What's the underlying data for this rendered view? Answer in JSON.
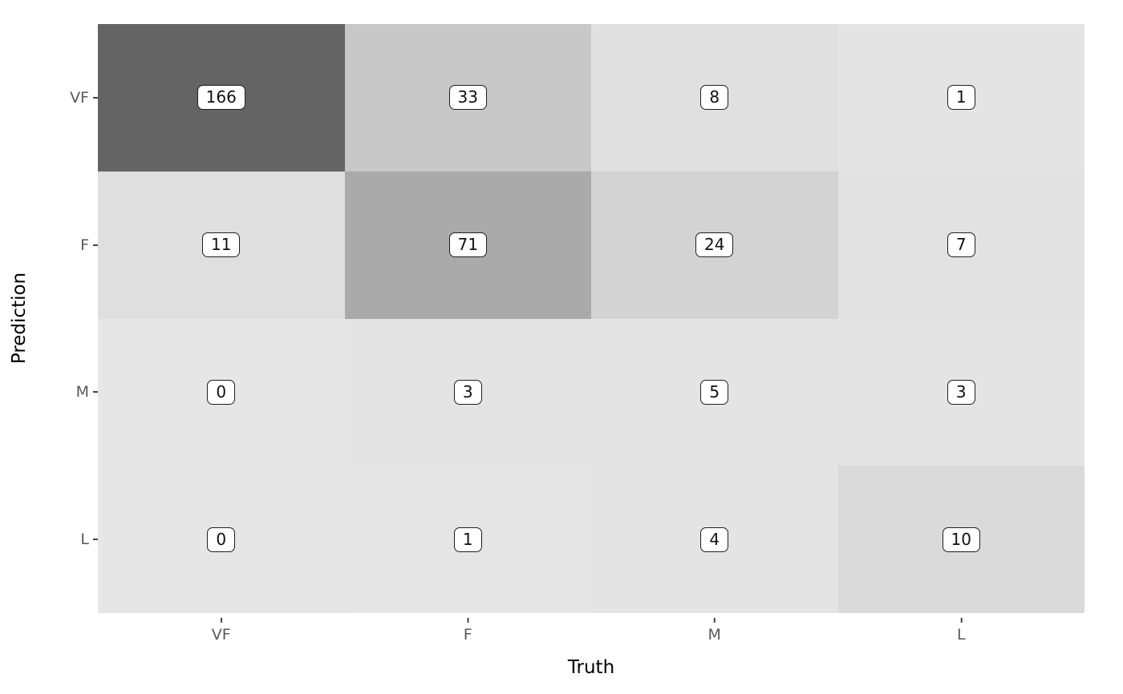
{
  "figure": {
    "background": "#ffffff"
  },
  "chart_data": {
    "type": "heatmap",
    "title": "",
    "xlabel": "Truth",
    "ylabel": "Prediction",
    "x_categories": [
      "VF",
      "F",
      "M",
      "L"
    ],
    "y_categories": [
      "VF",
      "F",
      "M",
      "L"
    ],
    "values": [
      [
        166,
        33,
        8,
        1
      ],
      [
        11,
        71,
        24,
        7
      ],
      [
        0,
        3,
        5,
        3
      ],
      [
        0,
        1,
        4,
        10
      ]
    ],
    "cell_colors": [
      [
        "#646464",
        "#c8c8c8",
        "#e0e0e0",
        "#e4e4e4"
      ],
      [
        "#dfdfdf",
        "#aaaaaa",
        "#d3d3d3",
        "#e2e2e2"
      ],
      [
        "#e6e6e6",
        "#e4e4e4",
        "#e4e4e4",
        "#e4e4e4"
      ],
      [
        "#e6e6e6",
        "#e5e5e5",
        "#e4e4e4",
        "#dadada"
      ]
    ],
    "value_range": [
      0,
      166
    ],
    "colormap": "grey-light-to-dark",
    "legend": "none",
    "grid": "off",
    "annotation_box": {
      "background": "#ffffff",
      "border_color": "#1f1f1f",
      "text_color": "#111111"
    },
    "tick_label_color": "#595959",
    "axis_title_color": "#000000"
  }
}
